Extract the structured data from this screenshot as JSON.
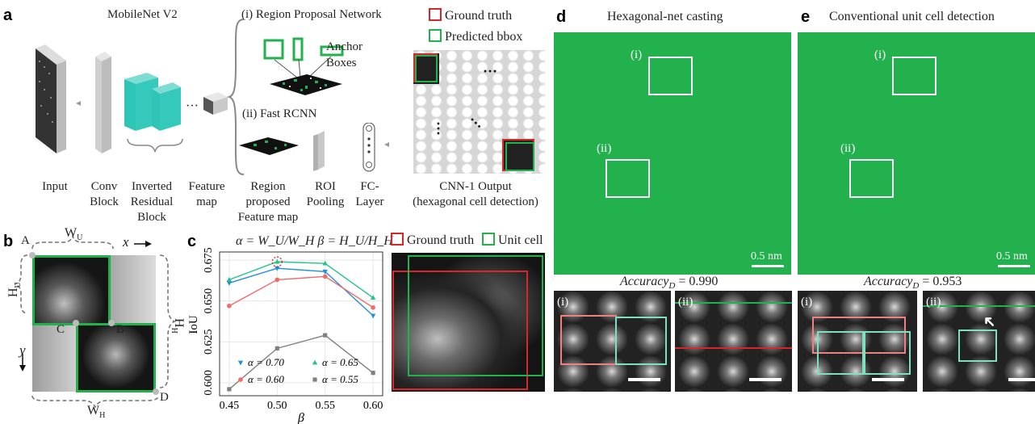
{
  "panels": {
    "a": {
      "label": "a",
      "network_title": "MobileNet V2",
      "rpn_title": "(i) Region Proposal Network",
      "anchor_label": "Anchor\nBoxes",
      "fast_rcnn_title": "(ii) Fast RCNN",
      "legend": {
        "ground_truth": "Ground truth",
        "predicted": "Predicted bbox"
      },
      "dots": "···",
      "stage_labels": [
        "Input",
        "Conv\nBlock",
        "Inverted\nResidual\nBlock",
        "Feature\nmap",
        "Region\nproposed\nFeature map",
        "ROI\nPooling",
        "FC-\nLayer",
        "CNN-1 Output\n(hexagonal cell detection)"
      ]
    },
    "b": {
      "label": "b",
      "points": [
        "A",
        "B",
        "C",
        "D"
      ],
      "wu": "W",
      "wu_sub": "U",
      "wh": "W",
      "wh_sub": "H",
      "hu": "H",
      "hu_sub": "U",
      "hh": "H",
      "hh_sub": "H",
      "x_axis": "x",
      "y_axis": "y"
    },
    "c": {
      "label": "c",
      "formula": "α = W_U/W_H  β = H_U/H_H",
      "legend": {
        "ground_truth": "Ground truth",
        "unit_cell": "Unit cell"
      }
    },
    "d": {
      "label": "d",
      "title": "Hexagonal-net casting",
      "accuracy_label": "Accuracy",
      "accuracy_sub": "D",
      "accuracy_value": "= 0.990",
      "scale_bar": "0.5 nm",
      "insets": [
        "(i)",
        "(ii)"
      ]
    },
    "e": {
      "label": "e",
      "title": "Conventional unit cell detection",
      "accuracy_label": "Accuracy",
      "accuracy_sub": "D",
      "accuracy_value": "= 0.953",
      "scale_bar": "0.5 nm",
      "insets": [
        "(i)",
        "(ii)"
      ]
    }
  },
  "colors": {
    "ground_truth": "#d9262c",
    "predicted": "#22b14c",
    "teal": "#2ec4b6",
    "alpha_070": "#1f8fe0",
    "alpha_065": "#21c48a",
    "alpha_060": "#f06a6a",
    "alpha_055": "#808080"
  },
  "chart_data": {
    "type": "line",
    "x": [
      0.45,
      0.5,
      0.55,
      0.6
    ],
    "xlabel": "β",
    "ylabel": "IoU",
    "xlim": [
      0.44,
      0.61
    ],
    "ylim": [
      0.592,
      0.68
    ],
    "xticks": [
      "0.45",
      "0.50",
      "0.55",
      "0.60"
    ],
    "yticks": [
      "0.600",
      "0.625",
      "0.650",
      "0.675"
    ],
    "grid": true,
    "series": [
      {
        "name": "α = 0.70",
        "marker": "triangle-down",
        "values": [
          0.661,
          0.67,
          0.668,
          0.641
        ]
      },
      {
        "name": "α = 0.65",
        "marker": "triangle-up",
        "values": [
          0.663,
          0.674,
          0.673,
          0.652
        ]
      },
      {
        "name": "α = 0.60",
        "marker": "circle",
        "values": [
          0.647,
          0.663,
          0.665,
          0.646
        ]
      },
      {
        "name": "α = 0.55",
        "marker": "square",
        "values": [
          0.596,
          0.621,
          0.629,
          0.606
        ]
      }
    ],
    "highlight": {
      "x": 0.5,
      "y": 0.674
    }
  }
}
